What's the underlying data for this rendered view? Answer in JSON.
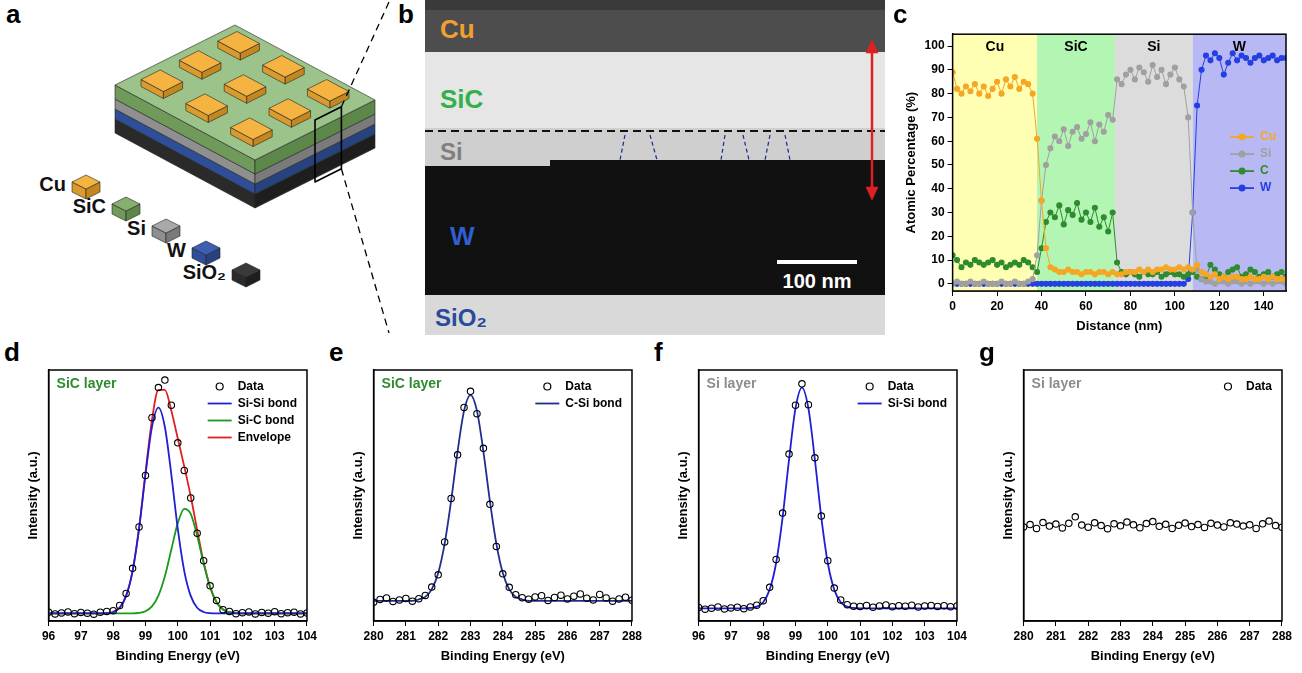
{
  "schematic": {
    "panel": "a",
    "layers": [
      "Cu",
      "SiC",
      "Si",
      "W",
      "SiO₂"
    ]
  },
  "micrograph": {
    "panel": "b",
    "labels": [
      "Cu",
      "SiC",
      "Si",
      "W",
      "SiO₂"
    ],
    "scale_bar": "100 nm"
  },
  "chart_data": [
    {
      "panel": "c",
      "type": "line",
      "x_label": "Distance (nm)",
      "y_label": "Atomic Percentage (%)",
      "regions": [
        {
          "label": "Cu",
          "from": 0,
          "to": 38,
          "color": "#ffffb3"
        },
        {
          "label": "SiC",
          "from": 38,
          "to": 73,
          "color": "#b3f5b3"
        },
        {
          "label": "Si",
          "from": 73,
          "to": 108,
          "color": "#dcdcdc"
        },
        {
          "label": "W",
          "from": 108,
          "to": 150,
          "color": "#b8b8f5"
        }
      ],
      "x": [
        0,
        2,
        4,
        6,
        8,
        10,
        12,
        14,
        16,
        18,
        20,
        22,
        24,
        26,
        28,
        30,
        32,
        34,
        36,
        38,
        40,
        42,
        44,
        46,
        48,
        50,
        52,
        54,
        56,
        58,
        60,
        62,
        64,
        66,
        68,
        70,
        72,
        74,
        76,
        78,
        80,
        82,
        84,
        86,
        88,
        90,
        92,
        94,
        96,
        98,
        100,
        102,
        104,
        106,
        108,
        110,
        112,
        114,
        116,
        118,
        120,
        122,
        124,
        126,
        128,
        130,
        132,
        134,
        136,
        138,
        140,
        142,
        144,
        146,
        148,
        150
      ],
      "series": [
        {
          "name": "Cu",
          "color": "#f5a623",
          "marker": "circle",
          "line_style": "solid",
          "values": [
            89,
            82,
            80,
            83,
            81,
            84,
            80,
            83,
            79,
            82,
            85,
            80,
            86,
            83,
            87,
            82,
            85,
            84,
            80,
            61,
            35,
            15,
            7,
            6,
            5,
            5,
            6,
            5,
            5,
            4,
            5,
            5,
            4,
            5,
            5,
            4,
            5,
            4,
            4,
            5,
            5,
            5,
            6,
            5,
            6,
            5,
            6,
            6,
            7,
            6,
            6,
            7,
            6,
            7,
            6,
            8,
            5,
            4,
            3,
            4,
            2,
            3,
            2,
            3,
            3,
            2,
            2,
            3,
            2,
            2,
            3,
            2,
            3,
            2,
            2,
            2
          ]
        },
        {
          "name": "Si",
          "color": "#a0a0a0",
          "marker": "circle",
          "line_style": "solid",
          "values": [
            0,
            1,
            0,
            0,
            1,
            0,
            0,
            1,
            0,
            0,
            0,
            1,
            0,
            0,
            1,
            0,
            0,
            1,
            2,
            12,
            35,
            50,
            57,
            62,
            60,
            65,
            58,
            64,
            66,
            61,
            63,
            68,
            60,
            67,
            64,
            71,
            69,
            86,
            84,
            88,
            90,
            86,
            91,
            89,
            85,
            92,
            87,
            90,
            84,
            88,
            91,
            86,
            83,
            70,
            30,
            6,
            2,
            1,
            1,
            0,
            1,
            1,
            0,
            1,
            1,
            0,
            1,
            0,
            1,
            1,
            0,
            1,
            0,
            1,
            1,
            0
          ]
        },
        {
          "name": "C",
          "color": "#2e8b2e",
          "marker": "circle",
          "line_style": "solid",
          "values": [
            12,
            10,
            7,
            9,
            8,
            10,
            9,
            8,
            9,
            10,
            8,
            9,
            7,
            8,
            9,
            8,
            10,
            9,
            7,
            5,
            15,
            26,
            30,
            28,
            33,
            25,
            31,
            29,
            34,
            27,
            30,
            26,
            32,
            24,
            28,
            22,
            30,
            9,
            5,
            4,
            5,
            4,
            3,
            5,
            4,
            4,
            5,
            3,
            4,
            5,
            4,
            4,
            3,
            4,
            5,
            3,
            2,
            3,
            8,
            6,
            4,
            3,
            5,
            6,
            7,
            3,
            4,
            6,
            5,
            3,
            4,
            5,
            3,
            4,
            5,
            3
          ]
        },
        {
          "name": "W",
          "color": "#2540e0",
          "marker": "circle",
          "line_style": "solid",
          "values": [
            0,
            0,
            0,
            0,
            0,
            0,
            0,
            0,
            0,
            0,
            0,
            0,
            0,
            0,
            0,
            0,
            0,
            0,
            0,
            0,
            0,
            0,
            0,
            0,
            0,
            0,
            0,
            0,
            0,
            0,
            0,
            0,
            0,
            0,
            0,
            0,
            0,
            0,
            0,
            0,
            0,
            0,
            0,
            0,
            0,
            0,
            0,
            0,
            0,
            0,
            0,
            0,
            0,
            2,
            30,
            75,
            90,
            96,
            94,
            97,
            95,
            88,
            93,
            97,
            94,
            96,
            95,
            93,
            95,
            96,
            94,
            95,
            96,
            94,
            95,
            95
          ]
        }
      ],
      "xlim": [
        0,
        150
      ],
      "xticks": [
        0,
        20,
        40,
        60,
        80,
        100,
        120,
        140
      ],
      "ylim": [
        -3,
        105
      ],
      "yticks": [
        0,
        10,
        20,
        30,
        40,
        50,
        60,
        70,
        80,
        90,
        100
      ],
      "grid": false,
      "legend": "center right"
    },
    {
      "panel": "d",
      "type": "line",
      "title": "SiC layer",
      "x_label": "Binding Energy (eV)",
      "y_label": "Intensity (a.u.)",
      "x": [
        96,
        96.2,
        96.4,
        96.6,
        96.8,
        97,
        97.2,
        97.4,
        97.6,
        97.8,
        98,
        98.2,
        98.4,
        98.6,
        98.8,
        99,
        99.2,
        99.4,
        99.6,
        99.8,
        100,
        100.2,
        100.4,
        100.6,
        100.8,
        101,
        101.2,
        101.4,
        101.6,
        101.8,
        102,
        102.2,
        102.4,
        102.6,
        102.8,
        103,
        103.2,
        103.4,
        103.6,
        103.8,
        104
      ],
      "series": [
        {
          "name": "Data",
          "color": "#000000",
          "marker": "open_circle",
          "line_style": "none",
          "values": [
            3.5,
            2.8,
            3.2,
            3.6,
            2.9,
            3.4,
            3.1,
            2.7,
            3.5,
            3.8,
            4.1,
            6.2,
            11,
            21,
            37.5,
            58,
            81,
            93,
            96,
            86,
            71,
            60,
            49,
            35,
            24,
            14,
            8.2,
            4.5,
            3.8,
            2.9,
            3.3,
            3.6,
            2.8,
            3.4,
            3.1,
            3.7,
            2.9,
            3.3,
            3.5,
            2.8,
            3.2
          ]
        },
        {
          "name": "Si-Si bond",
          "color": "#1f1fd6",
          "marker": "none",
          "line_style": "solid",
          "values": [
            3,
            3,
            3,
            3,
            3,
            3,
            3,
            3,
            3,
            3.1,
            3.6,
            5.3,
            10,
            19.9,
            36.7,
            58.3,
            77.3,
            85,
            77.3,
            58.3,
            36.7,
            19.9,
            10,
            5.3,
            3.6,
            3.1,
            3,
            3,
            3,
            3,
            3,
            3,
            3,
            3,
            3,
            3,
            3,
            3,
            3,
            3,
            3
          ]
        },
        {
          "name": "Si-C bond",
          "color": "#1a9a1a",
          "marker": "none",
          "line_style": "solid",
          "values": [
            3,
            3,
            3,
            3,
            3,
            3,
            3,
            3,
            3,
            3,
            3,
            3,
            3,
            3,
            3.2,
            3.9,
            5.8,
            10.1,
            17.8,
            28.5,
            39,
            44.7,
            42.7,
            34,
            22.9,
            13.5,
            7.5,
            4.6,
            3.5,
            3.1,
            3,
            3,
            3,
            3,
            3,
            3,
            3,
            3,
            3,
            3,
            3
          ]
        },
        {
          "name": "Envelope",
          "color": "#e02020",
          "marker": "none",
          "line_style": "solid",
          "values": [
            3,
            3,
            3,
            3,
            3,
            3,
            3,
            3,
            3,
            3.1,
            3.6,
            5.3,
            10,
            19.9,
            36.9,
            59.2,
            80.1,
            92.1,
            92.1,
            83.8,
            72.7,
            61.6,
            49.7,
            36.3,
            23.5,
            13.6,
            7.5,
            4.6,
            3.5,
            3.1,
            3,
            3,
            3,
            3,
            3,
            3,
            3,
            3,
            3,
            3,
            3
          ]
        }
      ],
      "xlim": [
        96,
        104
      ],
      "xticks": [
        96,
        97,
        98,
        99,
        100,
        101,
        102,
        103,
        104
      ],
      "ylim": [
        0,
        100
      ],
      "yticks": [],
      "tick_labels": "x",
      "grid": false,
      "legend": "upper right"
    },
    {
      "panel": "e",
      "type": "line",
      "title": "SiC layer",
      "x_label": "Binding Energy (eV)",
      "y_label": "Intensity (a.u.)",
      "x": [
        280,
        280.2,
        280.4,
        280.6,
        280.8,
        281,
        281.2,
        281.4,
        281.6,
        281.8,
        282,
        282.2,
        282.4,
        282.6,
        282.8,
        283,
        283.2,
        283.4,
        283.6,
        283.8,
        284,
        284.2,
        284.4,
        284.6,
        284.8,
        285,
        285.2,
        285.4,
        285.6,
        285.8,
        286,
        286.2,
        286.4,
        286.6,
        286.8,
        287,
        287.2,
        287.4,
        287.6,
        287.8,
        288
      ],
      "series": [
        {
          "name": "Data",
          "color": "#000000",
          "marker": "open_circle",
          "line_style": "none",
          "values": [
            7.5,
            8.6,
            9.2,
            7.8,
            8.4,
            9.0,
            7.9,
            8.9,
            10.2,
            13.5,
            18.4,
            31.5,
            48.8,
            66.2,
            85.1,
            91.5,
            82.6,
            68.8,
            46.5,
            29.7,
            18.8,
            13.4,
            10.5,
            9.3,
            8.7,
            9.6,
            10.1,
            8.2,
            9.4,
            10.3,
            8.8,
            9.9,
            10.8,
            9.1,
            8.4,
            10.6,
            9.2,
            7.9,
            8.8,
            9.5,
            8.3
          ]
        },
        {
          "name": "C-Si bond",
          "color": "#1f2f8f",
          "marker": "none",
          "line_style": "solid",
          "values": [
            8,
            8,
            8,
            8,
            8,
            8,
            8,
            8.6,
            9.6,
            12.6,
            19.1,
            30.8,
            47.9,
            67.5,
            83.7,
            90,
            83.7,
            67.5,
            47.9,
            30.8,
            19.1,
            12.6,
            9.6,
            8.6,
            8,
            8,
            8,
            8,
            8,
            8,
            8,
            8,
            8,
            8,
            8,
            8,
            8,
            8,
            8,
            8,
            8
          ]
        }
      ],
      "xlim": [
        280,
        288
      ],
      "xticks": [
        280,
        281,
        282,
        283,
        284,
        285,
        286,
        287,
        288
      ],
      "ylim": [
        0,
        100
      ],
      "yticks": [],
      "tick_labels": "x",
      "grid": false,
      "legend": "upper right"
    },
    {
      "panel": "f",
      "type": "line",
      "title": "Si layer",
      "x_label": "Binding Energy (eV)",
      "y_label": "Intensity (a.u.)",
      "x": [
        96,
        96.2,
        96.4,
        96.6,
        96.8,
        97,
        97.2,
        97.4,
        97.6,
        97.8,
        98,
        98.2,
        98.4,
        98.6,
        98.8,
        99,
        99.2,
        99.4,
        99.6,
        99.8,
        100,
        100.2,
        100.4,
        100.6,
        100.8,
        101,
        101.2,
        101.4,
        101.6,
        101.8,
        102,
        102.2,
        102.4,
        102.6,
        102.8,
        103,
        103.2,
        103.4,
        103.6,
        103.8,
        104
      ],
      "series": [
        {
          "name": "Data",
          "color": "#000000",
          "marker": "open_circle",
          "line_style": "none",
          "values": [
            5.4,
            4.7,
            5.1,
            5.6,
            4.8,
            5.2,
            5.5,
            4.9,
            5.6,
            6.3,
            8.1,
            13.4,
            24.5,
            43,
            66.5,
            86,
            94.5,
            86.2,
            65,
            41.8,
            24,
            13.1,
            8.4,
            6.5,
            5.9,
            5.8,
            6.2,
            5.5,
            6.0,
            6.4,
            5.7,
            6.1,
            5.9,
            6.3,
            5.6,
            6.0,
            6.2,
            5.8,
            6.1,
            5.7,
            6.0
          ]
        },
        {
          "name": "Si-Si bond",
          "color": "#1f1fd6",
          "marker": "none",
          "line_style": "solid",
          "values": [
            5,
            5,
            5,
            5,
            5,
            5,
            5,
            5,
            5.2,
            5.7,
            7.5,
            12.5,
            23.1,
            41.2,
            64.3,
            84.7,
            93,
            84.7,
            64.3,
            41.2,
            23.1,
            12.5,
            7.5,
            5.7,
            5.2,
            5,
            5,
            5,
            5,
            5,
            5,
            5,
            5,
            5,
            5,
            5,
            5,
            5,
            5,
            5,
            5
          ]
        }
      ],
      "xlim": [
        96,
        104
      ],
      "xticks": [
        96,
        97,
        98,
        99,
        100,
        101,
        102,
        103,
        104
      ],
      "ylim": [
        0,
        100
      ],
      "yticks": [],
      "tick_labels": "x",
      "grid": false,
      "legend": "upper right"
    },
    {
      "panel": "g",
      "type": "line",
      "title": "Si layer",
      "x_label": "Binding Energy (eV)",
      "y_label": "Intensity (a.u.)",
      "x": [
        280,
        280.2,
        280.4,
        280.6,
        280.8,
        281,
        281.2,
        281.4,
        281.6,
        281.8,
        282,
        282.2,
        282.4,
        282.6,
        282.8,
        283,
        283.2,
        283.4,
        283.6,
        283.8,
        284,
        284.2,
        284.4,
        284.6,
        284.8,
        285,
        285.2,
        285.4,
        285.6,
        285.8,
        286,
        286.2,
        286.4,
        286.6,
        286.8,
        287,
        287.2,
        287.4,
        287.6,
        287.8,
        288
      ],
      "series": [
        {
          "name": "Data",
          "color": "#000000",
          "marker": "open_circle",
          "line_style": "none",
          "values": [
            37.5,
            38.4,
            36.9,
            39.2,
            37.8,
            38.6,
            37.1,
            38.9,
            41.5,
            38.2,
            37.4,
            39.1,
            38.0,
            36.8,
            38.7,
            37.9,
            39.4,
            38.3,
            37.2,
            38.8,
            39.6,
            37.7,
            38.5,
            36.9,
            38.1,
            39.0,
            37.6,
            38.4,
            37.3,
            38.9,
            38.2,
            37.5,
            39.1,
            38.6,
            37.8,
            38.3,
            36.9,
            38.7,
            39.8,
            38.0,
            37.4
          ]
        }
      ],
      "xlim": [
        280,
        288
      ],
      "xticks": [
        280,
        281,
        282,
        283,
        284,
        285,
        286,
        287,
        288
      ],
      "ylim": [
        0,
        100
      ],
      "yticks": [],
      "tick_labels": "x",
      "grid": false,
      "legend": "upper right"
    }
  ]
}
